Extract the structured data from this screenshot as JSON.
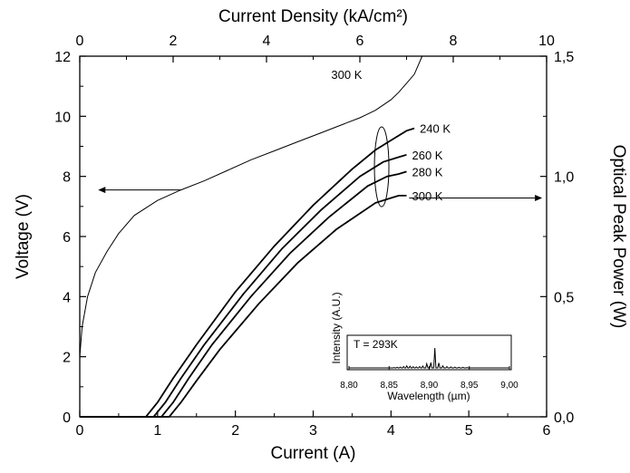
{
  "chart_data": {
    "type": "line",
    "bottom_axis": {
      "label": "Current (A)",
      "range": [
        0,
        6
      ],
      "ticks": [
        "0",
        "1",
        "2",
        "3",
        "4",
        "5",
        "6"
      ]
    },
    "top_axis": {
      "label": "Current Density (kA/cm²)",
      "range": [
        0,
        10
      ],
      "ticks": [
        "0",
        "2",
        "4",
        "6",
        "8",
        "10"
      ]
    },
    "left_axis": {
      "label": "Voltage (V)",
      "range": [
        0,
        12
      ],
      "ticks": [
        "0",
        "2",
        "4",
        "6",
        "8",
        "10",
        "12"
      ]
    },
    "right_axis": {
      "label": "Optical Peak Power (W)",
      "range": [
        0,
        1.5
      ],
      "ticks": [
        "0,0",
        "0,5",
        "1,0",
        "1,5"
      ]
    },
    "grid": false,
    "voltage_series": {
      "label": "300 K",
      "axis": "left",
      "x": [
        0.0,
        0.03,
        0.1,
        0.2,
        0.35,
        0.5,
        0.7,
        1.0,
        1.3,
        1.6,
        1.9,
        2.2,
        2.5,
        2.8,
        3.1,
        3.4,
        3.6,
        3.8,
        4.0,
        4.1,
        4.2,
        4.3,
        4.35,
        4.4
      ],
      "y": [
        2.0,
        3.0,
        4.0,
        4.8,
        5.5,
        6.1,
        6.7,
        7.2,
        7.55,
        7.85,
        8.2,
        8.55,
        8.85,
        9.15,
        9.45,
        9.75,
        9.95,
        10.2,
        10.55,
        10.8,
        11.1,
        11.4,
        11.7,
        12.0
      ]
    },
    "power_series": [
      {
        "label": "240 K",
        "axis": "right",
        "x": [
          0,
          0.85,
          1.0,
          1.2,
          1.5,
          2.0,
          2.5,
          3.0,
          3.5,
          3.8,
          4.0,
          4.2,
          4.3
        ],
        "y": [
          0,
          0,
          0.06,
          0.16,
          0.3,
          0.52,
          0.71,
          0.88,
          1.03,
          1.11,
          1.15,
          1.19,
          1.2
        ]
      },
      {
        "label": "260 K",
        "axis": "right",
        "x": [
          0,
          0.95,
          1.1,
          1.3,
          1.6,
          2.1,
          2.6,
          3.1,
          3.6,
          3.9,
          4.1,
          4.2
        ],
        "y": [
          0,
          0,
          0.06,
          0.16,
          0.3,
          0.51,
          0.7,
          0.86,
          1.0,
          1.06,
          1.08,
          1.09
        ]
      },
      {
        "label": "280 K",
        "axis": "right",
        "x": [
          0,
          1.05,
          1.2,
          1.4,
          1.7,
          2.2,
          2.7,
          3.2,
          3.7,
          3.95,
          4.1,
          4.2
        ],
        "y": [
          0,
          0,
          0.06,
          0.16,
          0.3,
          0.5,
          0.68,
          0.83,
          0.96,
          1.0,
          1.01,
          1.02
        ]
      },
      {
        "label": "300 K",
        "axis": "right",
        "x": [
          0,
          1.15,
          1.3,
          1.5,
          1.8,
          2.3,
          2.8,
          3.3,
          3.8,
          4.0,
          4.1,
          4.2
        ],
        "y": [
          0,
          0,
          0.06,
          0.15,
          0.28,
          0.47,
          0.64,
          0.78,
          0.89,
          0.91,
          0.92,
          0.92
        ]
      }
    ],
    "inset": {
      "type": "line",
      "annotation": "T = 293K",
      "xlabel": "Wavelength (µm)",
      "ylabel": "Intensity (A.U.)",
      "xrange": [
        8.8,
        9.0
      ],
      "xticks": [
        "8,80",
        "8,85",
        "8,90",
        "8,95",
        "9,00"
      ],
      "peaks": [
        {
          "x": 8.856,
          "h": 0.02
        },
        {
          "x": 8.86,
          "h": 0.03
        },
        {
          "x": 8.864,
          "h": 0.04
        },
        {
          "x": 8.868,
          "h": 0.07
        },
        {
          "x": 8.872,
          "h": 0.1
        },
        {
          "x": 8.876,
          "h": 0.08
        },
        {
          "x": 8.88,
          "h": 0.06
        },
        {
          "x": 8.884,
          "h": 0.05
        },
        {
          "x": 8.888,
          "h": 0.07
        },
        {
          "x": 8.892,
          "h": 0.09
        },
        {
          "x": 8.897,
          "h": 0.21
        },
        {
          "x": 8.902,
          "h": 0.27
        },
        {
          "x": 8.907,
          "h": 1.0
        },
        {
          "x": 8.912,
          "h": 0.25
        },
        {
          "x": 8.917,
          "h": 0.1
        },
        {
          "x": 8.922,
          "h": 0.07
        },
        {
          "x": 8.927,
          "h": 0.05
        },
        {
          "x": 8.932,
          "h": 0.04
        },
        {
          "x": 8.937,
          "h": 0.03
        },
        {
          "x": 8.942,
          "h": 0.03
        },
        {
          "x": 8.947,
          "h": 0.02
        }
      ]
    }
  }
}
